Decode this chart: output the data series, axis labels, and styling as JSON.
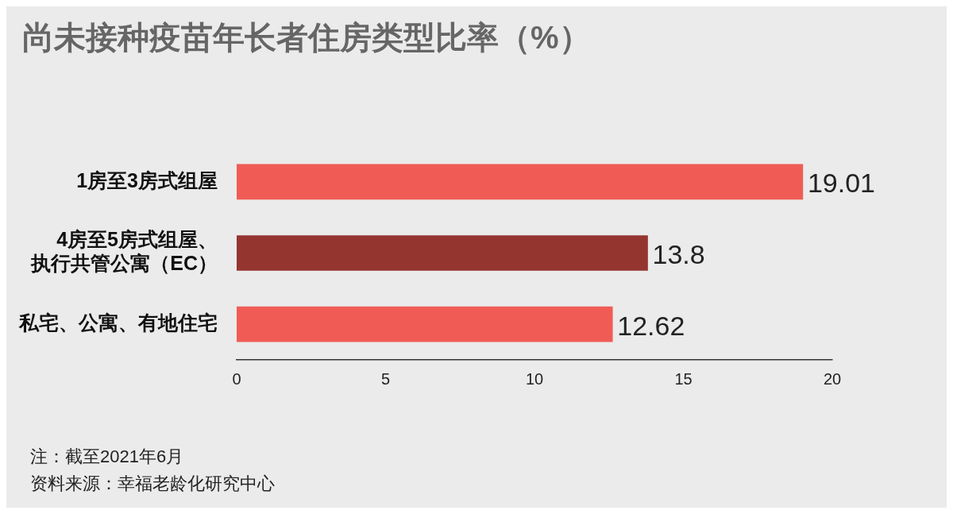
{
  "chart_data": {
    "type": "bar",
    "orientation": "horizontal",
    "title": "尚未接种疫苗年长者住房类型比率（%）",
    "categories": [
      "1房至3房式组屋",
      "4房至5房式组屋、执行共管公寓（EC）",
      "私宅、公寓、有地住宅"
    ],
    "values": [
      19.01,
      13.8,
      12.62
    ],
    "colors": [
      "#f05c55",
      "#943530",
      "#f05c55"
    ],
    "xlim": [
      0,
      20
    ],
    "xticks": [
      0,
      5,
      10,
      15,
      20
    ],
    "grid": false,
    "legend": false,
    "data_labels": true,
    "annotations": [
      "注：截至2021年6月",
      "资料来源：幸福老龄化研究中心"
    ]
  }
}
